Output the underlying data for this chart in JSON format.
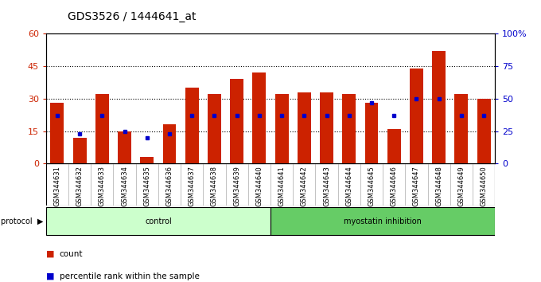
{
  "title": "GDS3526 / 1444641_at",
  "samples": [
    "GSM344631",
    "GSM344632",
    "GSM344633",
    "GSM344634",
    "GSM344635",
    "GSM344636",
    "GSM344637",
    "GSM344638",
    "GSM344639",
    "GSM344640",
    "GSM344641",
    "GSM344642",
    "GSM344643",
    "GSM344644",
    "GSM344645",
    "GSM344646",
    "GSM344647",
    "GSM344648",
    "GSM344649",
    "GSM344650"
  ],
  "count_values": [
    28,
    12,
    32,
    15,
    3,
    18,
    35,
    32,
    39,
    42,
    32,
    33,
    33,
    32,
    28,
    16,
    44,
    52,
    32,
    30
  ],
  "percentile_values": [
    37,
    23,
    37,
    25,
    20,
    23,
    37,
    37,
    37,
    37,
    37,
    37,
    37,
    37,
    47,
    37,
    50,
    50,
    37,
    37
  ],
  "groups": [
    {
      "name": "control",
      "start": 0,
      "end": 10,
      "color": "#ccffcc"
    },
    {
      "name": "myostatin inhibition",
      "start": 10,
      "end": 20,
      "color": "#66cc66"
    }
  ],
  "left_ylim": [
    0,
    60
  ],
  "left_yticks": [
    0,
    15,
    30,
    45,
    60
  ],
  "right_ylim": [
    0,
    100
  ],
  "right_yticks": [
    0,
    25,
    50,
    75,
    100
  ],
  "grid_values": [
    15,
    30,
    45
  ],
  "bar_color": "#cc2200",
  "percentile_color": "#0000cc",
  "title_fontsize": 10,
  "axis_label_color_left": "#cc2200",
  "axis_label_color_right": "#0000cc"
}
